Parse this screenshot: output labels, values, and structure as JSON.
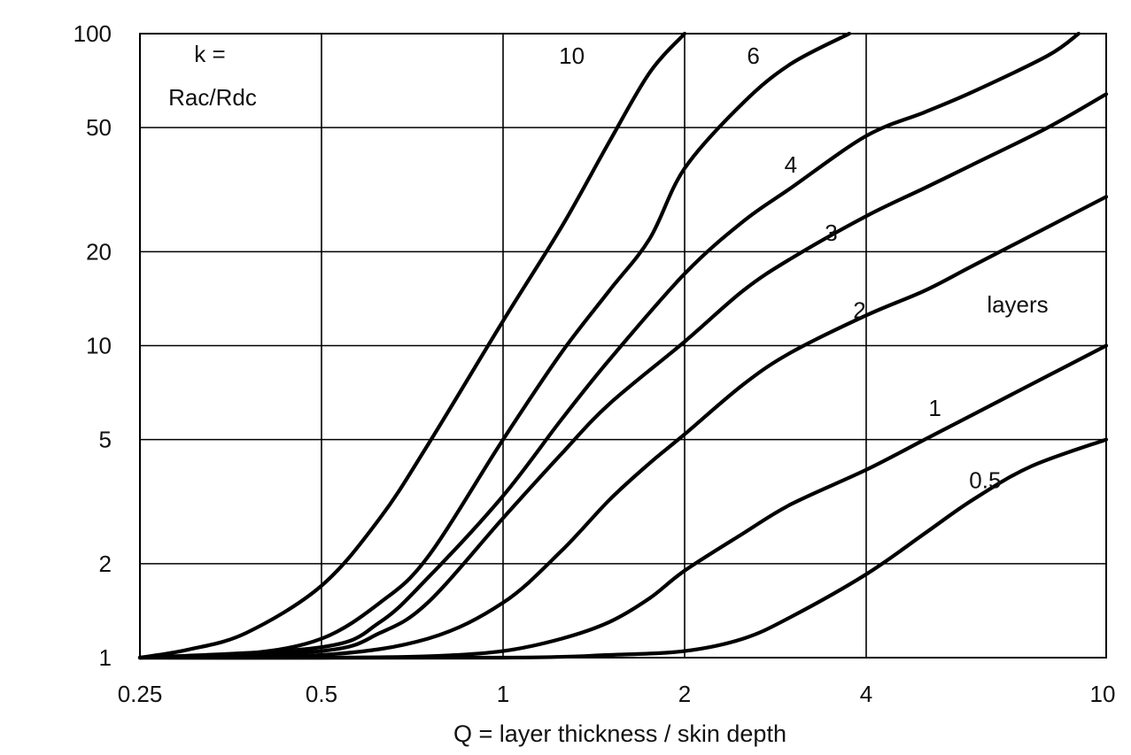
{
  "chart_data": {
    "type": "line",
    "title": "",
    "xlabel": "Q = layer thickness / skin depth",
    "ylabel": "",
    "y_label_lines": [
      "k =",
      "Rac/Rdc"
    ],
    "xscale": "log",
    "yscale": "log",
    "xlim": [
      0.25,
      10
    ],
    "ylim": [
      1,
      100
    ],
    "x_ticks": [
      0.25,
      0.5,
      1,
      2,
      4,
      10
    ],
    "x_tick_labels": [
      "0.25",
      "0.5",
      "1",
      "2",
      "4",
      "10"
    ],
    "y_ticks": [
      1,
      2,
      5,
      10,
      20,
      50,
      100
    ],
    "y_tick_labels": [
      "1",
      "2",
      "5",
      "10",
      "20",
      "50",
      "100"
    ],
    "grid": true,
    "legend": "none",
    "series_annotation": "layers",
    "line_color": "#000000",
    "series": [
      {
        "name": "0.5",
        "points": [
          [
            0.25,
            1
          ],
          [
            1,
            1.0
          ],
          [
            1.5,
            1.02
          ],
          [
            2,
            1.05
          ],
          [
            2.5,
            1.15
          ],
          [
            3,
            1.35
          ],
          [
            4,
            1.85
          ],
          [
            5,
            2.5
          ],
          [
            6,
            3.2
          ],
          [
            7.5,
            4.1
          ],
          [
            10,
            5
          ]
        ]
      },
      {
        "name": "1",
        "points": [
          [
            0.25,
            1
          ],
          [
            0.5,
            1.0
          ],
          [
            0.75,
            1.01
          ],
          [
            1,
            1.05
          ],
          [
            1.25,
            1.15
          ],
          [
            1.5,
            1.3
          ],
          [
            1.75,
            1.55
          ],
          [
            2,
            1.9
          ],
          [
            2.5,
            2.5
          ],
          [
            3,
            3.1
          ],
          [
            4,
            4.0
          ],
          [
            5,
            5.0
          ],
          [
            6,
            6.0
          ],
          [
            8,
            8.0
          ],
          [
            10,
            10
          ]
        ]
      },
      {
        "name": "2",
        "points": [
          [
            0.25,
            1
          ],
          [
            0.5,
            1.02
          ],
          [
            0.75,
            1.15
          ],
          [
            1,
            1.5
          ],
          [
            1.25,
            2.2
          ],
          [
            1.5,
            3.2
          ],
          [
            1.75,
            4.2
          ],
          [
            2,
            5.2
          ],
          [
            2.5,
            7.5
          ],
          [
            3,
            9.5
          ],
          [
            4,
            12.5
          ],
          [
            5,
            15
          ],
          [
            6,
            18
          ],
          [
            8,
            24
          ],
          [
            10,
            30
          ]
        ]
      },
      {
        "name": "3",
        "points": [
          [
            0.25,
            1
          ],
          [
            0.5,
            1.05
          ],
          [
            0.625,
            1.2
          ],
          [
            0.75,
            1.5
          ],
          [
            1,
            2.8
          ],
          [
            1.25,
            4.5
          ],
          [
            1.5,
            6.5
          ],
          [
            2,
            10.3
          ],
          [
            2.5,
            15
          ],
          [
            3,
            19
          ],
          [
            4,
            26
          ],
          [
            5,
            32
          ],
          [
            6,
            38
          ],
          [
            8,
            50
          ],
          [
            10,
            64
          ]
        ]
      },
      {
        "name": "4",
        "points": [
          [
            0.25,
            1
          ],
          [
            0.5,
            1.08
          ],
          [
            0.625,
            1.3
          ],
          [
            0.75,
            1.8
          ],
          [
            1,
            3.3
          ],
          [
            1.25,
            5.8
          ],
          [
            1.5,
            9
          ],
          [
            2,
            17
          ],
          [
            2.5,
            25
          ],
          [
            3,
            32
          ],
          [
            4,
            47
          ],
          [
            5,
            56
          ],
          [
            6,
            65
          ],
          [
            8,
            85
          ],
          [
            9,
            100
          ]
        ]
      },
      {
        "name": "6",
        "points": [
          [
            0.25,
            1
          ],
          [
            0.375,
            1.03
          ],
          [
            0.5,
            1.15
          ],
          [
            0.625,
            1.5
          ],
          [
            0.75,
            2.1
          ],
          [
            1,
            5
          ],
          [
            1.25,
            9.5
          ],
          [
            1.5,
            15
          ],
          [
            1.75,
            22
          ],
          [
            2,
            37
          ],
          [
            2.5,
            60
          ],
          [
            3,
            80
          ],
          [
            3.75,
            100
          ]
        ]
      },
      {
        "name": "10",
        "points": [
          [
            0.25,
            1
          ],
          [
            0.3,
            1.06
          ],
          [
            0.375,
            1.2
          ],
          [
            0.5,
            1.7
          ],
          [
            0.625,
            2.8
          ],
          [
            0.75,
            4.8
          ],
          [
            1,
            12
          ],
          [
            1.25,
            24
          ],
          [
            1.5,
            45
          ],
          [
            1.75,
            75
          ],
          [
            2,
            100
          ]
        ]
      }
    ],
    "curve_labels": [
      {
        "text": "10",
        "x": 1.3,
        "y": 85
      },
      {
        "text": "6",
        "x": 2.6,
        "y": 85
      },
      {
        "text": "4",
        "x": 3.0,
        "y": 38
      },
      {
        "text": "3",
        "x": 3.5,
        "y": 23
      },
      {
        "text": "2",
        "x": 3.9,
        "y": 13
      },
      {
        "text": "1",
        "x": 5.2,
        "y": 6.3
      },
      {
        "text": "0.5",
        "x": 6.3,
        "y": 3.7
      }
    ]
  }
}
